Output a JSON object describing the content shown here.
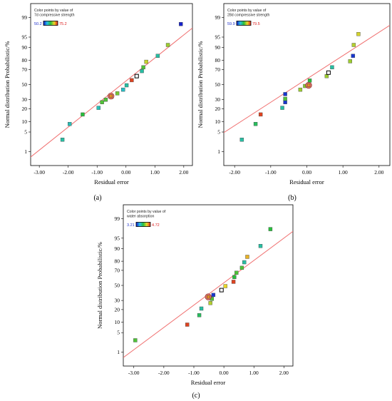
{
  "chart_data": [
    {
      "type": "scatter",
      "panel_label": "(a)",
      "xlabel": "Residual error",
      "ylabel": "Normal distribution Probabilistic/%",
      "x_ticks": [
        -3.0,
        -2.0,
        -1.0,
        0.0,
        1.0,
        2.0
      ],
      "x_tick_labels": [
        "-3.00",
        "-2.00",
        "-1.00",
        "0.00",
        "1.00",
        "2.00"
      ],
      "xlim": [
        -3.3,
        2.3
      ],
      "y_ticks": [
        1,
        5,
        10,
        20,
        30,
        50,
        70,
        80,
        90,
        95,
        99
      ],
      "y_tick_labels": [
        "1",
        "5",
        "10",
        "20",
        "30",
        "50",
        "70",
        "80",
        "90",
        "95",
        "99"
      ],
      "ylim": [
        0.25,
        99.75
      ],
      "legend": {
        "title_lines": [
          "Color points by value of",
          "7d compressive strength"
        ],
        "min_label": "50.2",
        "max_label": "75.2"
      },
      "line": {
        "x": [
          -3.3,
          2.3
        ],
        "y": [
          0.6,
          97.5
        ]
      },
      "points": [
        {
          "x": -2.2,
          "y": 2.8,
          "c": 0.35
        },
        {
          "x": -1.95,
          "y": 8.6,
          "c": 0.32
        },
        {
          "x": -1.5,
          "y": 15.0,
          "c": 0.5
        },
        {
          "x": -0.95,
          "y": 21.0,
          "c": 0.32
        },
        {
          "x": -0.83,
          "y": 27.0,
          "c": 0.55
        },
        {
          "x": -0.7,
          "y": 30.0,
          "c": 0.55
        },
        {
          "x": -0.5,
          "y": 33.5,
          "c": 0.55
        },
        {
          "x": -0.52,
          "y": 34.5,
          "c": 0.85,
          "ring": true
        },
        {
          "x": -0.3,
          "y": 38.0,
          "c": 0.6
        },
        {
          "x": -0.1,
          "y": 43.0,
          "c": 0.3
        },
        {
          "x": 0.02,
          "y": 49.0,
          "c": 0.35
        },
        {
          "x": 0.2,
          "y": 56.0,
          "c": 0.95
        },
        {
          "x": 0.37,
          "y": 61.5,
          "c": 0.85,
          "hollow": true
        },
        {
          "x": 0.55,
          "y": 68.0,
          "c": 0.35
        },
        {
          "x": 0.6,
          "y": 72.5,
          "c": 0.55
        },
        {
          "x": 0.7,
          "y": 78.5,
          "c": 0.7
        },
        {
          "x": 1.1,
          "y": 84.0,
          "c": 0.35
        },
        {
          "x": 1.45,
          "y": 91.5,
          "c": 0.65
        },
        {
          "x": 1.9,
          "y": 98.2,
          "c": 0.02
        }
      ]
    },
    {
      "type": "scatter",
      "panel_label": "(b)",
      "xlabel": "Residual error",
      "ylabel": "Normal distribution Probabilistic/%",
      "x_ticks": [
        -2.0,
        -1.0,
        0.0,
        1.0,
        2.0
      ],
      "x_tick_labels": [
        "-2.00",
        "-1.00",
        "0.00",
        "1.00",
        "2.00"
      ],
      "xlim": [
        -2.3,
        2.3
      ],
      "y_ticks": [
        1,
        5,
        10,
        20,
        30,
        50,
        70,
        80,
        90,
        95,
        99
      ],
      "y_tick_labels": [
        "1",
        "5",
        "10",
        "20",
        "30",
        "50",
        "70",
        "80",
        "90",
        "95",
        "99"
      ],
      "ylim": [
        0.25,
        99.75
      ],
      "legend": {
        "title_lines": [
          "Color points by value of",
          "28d compressive strength"
        ],
        "min_label": "59.9",
        "max_label": "79.5"
      },
      "line": {
        "x": [
          -2.3,
          2.3
        ],
        "y": [
          4.8,
          98.0
        ]
      },
      "points": [
        {
          "x": -1.8,
          "y": 2.8,
          "c": 0.35
        },
        {
          "x": -1.42,
          "y": 8.6,
          "c": 0.45
        },
        {
          "x": -1.28,
          "y": 15.0,
          "c": 0.95
        },
        {
          "x": -0.68,
          "y": 21.0,
          "c": 0.35
        },
        {
          "x": -0.6,
          "y": 27.0,
          "c": 0.05
        },
        {
          "x": -0.6,
          "y": 31.0,
          "c": 0.55
        },
        {
          "x": -0.6,
          "y": 37.0,
          "c": 0.05
        },
        {
          "x": -0.18,
          "y": 43.0,
          "c": 0.65
        },
        {
          "x": -0.05,
          "y": 48.0,
          "c": 0.62
        },
        {
          "x": 0.05,
          "y": 49.0,
          "c": 0.85,
          "ring": true
        },
        {
          "x": 0.08,
          "y": 55.5,
          "c": 0.5
        },
        {
          "x": 0.55,
          "y": 61.5,
          "c": 0.65
        },
        {
          "x": 0.6,
          "y": 66.0,
          "c": 0.85,
          "hollow": true
        },
        {
          "x": 0.7,
          "y": 72.5,
          "c": 0.35
        },
        {
          "x": 1.2,
          "y": 79.0,
          "c": 0.65
        },
        {
          "x": 1.28,
          "y": 84.0,
          "c": 0.05
        },
        {
          "x": 1.3,
          "y": 91.5,
          "c": 0.68
        },
        {
          "x": 1.43,
          "y": 96.0,
          "c": 0.72
        }
      ]
    },
    {
      "type": "scatter",
      "panel_label": "(c)",
      "xlabel": "Residual error",
      "ylabel": "Normal distribution Probabilistic/%",
      "x_ticks": [
        -3.0,
        -2.0,
        -1.0,
        0.0,
        1.0,
        2.0
      ],
      "x_tick_labels": [
        "-3.00",
        "-2.00",
        "-1.00",
        "0.00",
        "1.00",
        "2.00"
      ],
      "xlim": [
        -3.35,
        2.3
      ],
      "y_ticks": [
        1,
        5,
        10,
        20,
        30,
        50,
        70,
        80,
        90,
        95,
        99
      ],
      "y_tick_labels": [
        "1",
        "5",
        "10",
        "20",
        "30",
        "50",
        "70",
        "80",
        "90",
        "95",
        "99"
      ],
      "ylim": [
        0.25,
        99.75
      ],
      "legend": {
        "title_lines": [
          "Color points by value of",
          "water absorption"
        ],
        "min_label": "3.21",
        "max_label": "4.72"
      },
      "line": {
        "x": [
          -3.35,
          2.3
        ],
        "y": [
          0.6,
          97.0
        ]
      },
      "points": [
        {
          "x": -2.95,
          "y": 2.8,
          "c": 0.55
        },
        {
          "x": -1.22,
          "y": 8.6,
          "c": 0.95
        },
        {
          "x": -0.82,
          "y": 15.0,
          "c": 0.45
        },
        {
          "x": -0.75,
          "y": 21.0,
          "c": 0.35
        },
        {
          "x": -0.45,
          "y": 27.0,
          "c": 0.68
        },
        {
          "x": -0.4,
          "y": 32.0,
          "c": 0.55
        },
        {
          "x": -0.52,
          "y": 34.5,
          "c": 0.85,
          "ring": true
        },
        {
          "x": -0.35,
          "y": 37.0,
          "c": 0.05
        },
        {
          "x": -0.08,
          "y": 43.5,
          "c": 0.85,
          "hollow": true
        },
        {
          "x": 0.05,
          "y": 49.0,
          "c": 0.75
        },
        {
          "x": 0.32,
          "y": 55.0,
          "c": 0.95
        },
        {
          "x": 0.35,
          "y": 61.5,
          "c": 0.5
        },
        {
          "x": 0.42,
          "y": 67.0,
          "c": 0.55
        },
        {
          "x": 0.6,
          "y": 73.0,
          "c": 0.55
        },
        {
          "x": 0.68,
          "y": 79.0,
          "c": 0.35
        },
        {
          "x": 0.78,
          "y": 84.0,
          "c": 0.8
        },
        {
          "x": 1.22,
          "y": 91.5,
          "c": 0.35
        },
        {
          "x": 1.55,
          "y": 97.5,
          "c": 0.5
        }
      ]
    }
  ]
}
